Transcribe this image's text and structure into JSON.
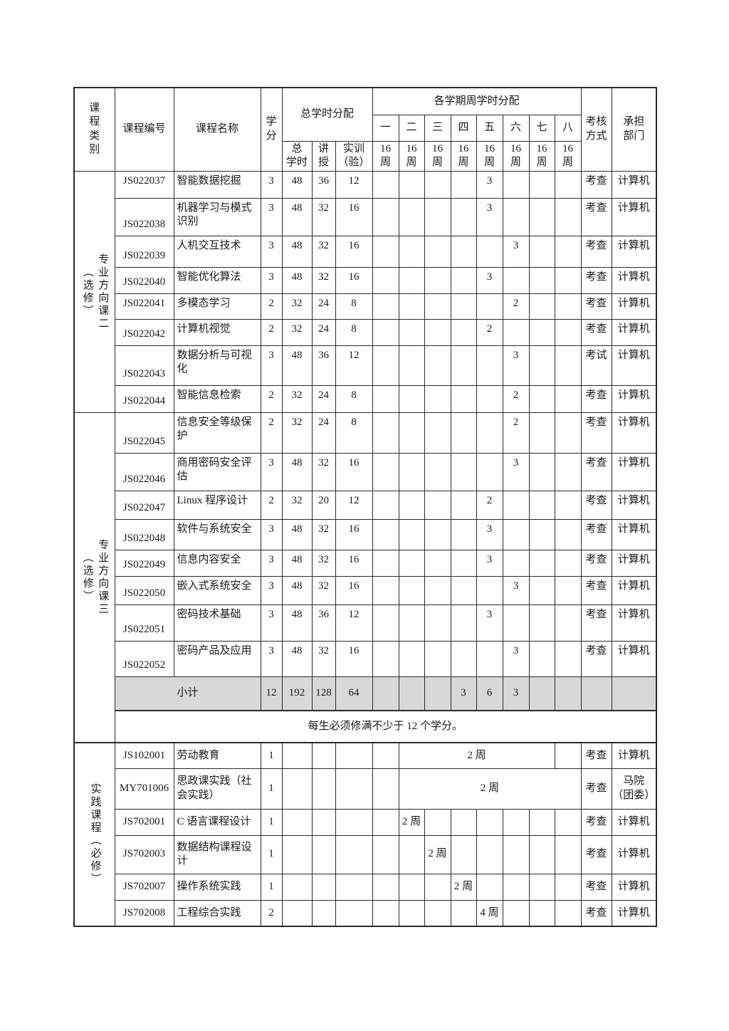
{
  "table": {
    "header": {
      "category": "课\n程\n类\n别",
      "code": "课程编号",
      "name": "课程名称",
      "credits": "学\n分",
      "hours_group": "总学时分配",
      "total": "总\n学时",
      "lecture": "讲授",
      "practice_col": "实训\n（验）",
      "semester_group": "各学期周学时分配",
      "semesters": [
        "一",
        "二",
        "三",
        "四",
        "五",
        "六",
        "七",
        "八"
      ],
      "weeks": "16\n周",
      "assessment": "考核\n方式",
      "department": "承担\n部门"
    },
    "sections": [
      {
        "category_main": "专业方向课二",
        "category_paren": "（选修）",
        "rows": [
          {
            "code": "JS022037",
            "name": "智能数据挖掘",
            "credits": "3",
            "total": "48",
            "lecture": "36",
            "practice": "12",
            "sem": {
              "5": "3"
            },
            "assessment": "考查",
            "department": "计算机"
          },
          {
            "code": "JS022038",
            "name": "机器学习与模式\n识别",
            "credits": "3",
            "total": "48",
            "lecture": "32",
            "practice": "16",
            "sem": {
              "5": "3"
            },
            "assessment": "考查",
            "department": "计算机"
          },
          {
            "code": "JS022039",
            "name": "人机交互技术",
            "credits": "3",
            "total": "48",
            "lecture": "32",
            "practice": "16",
            "sem": {
              "6": "3"
            },
            "assessment": "考查",
            "department": "计算机"
          },
          {
            "code": "JS022040",
            "name": "智能优化算法",
            "credits": "3",
            "total": "48",
            "lecture": "32",
            "practice": "16",
            "sem": {
              "5": "3"
            },
            "assessment": "考查",
            "department": "计算机"
          },
          {
            "code": "JS022041",
            "name": "多模态学习",
            "credits": "2",
            "total": "32",
            "lecture": "24",
            "practice": "8",
            "sem": {
              "6": "2"
            },
            "assessment": "考查",
            "department": "计算机"
          },
          {
            "code": "JS022042",
            "name": "计算机视觉",
            "credits": "2",
            "total": "32",
            "lecture": "24",
            "practice": "8",
            "sem": {
              "5": "2"
            },
            "assessment": "考查",
            "department": "计算机"
          },
          {
            "code": "JS022043",
            "name": "数据分析与可视\n化",
            "credits": "3",
            "total": "48",
            "lecture": "36",
            "practice": "12",
            "sem": {
              "6": "3"
            },
            "assessment": "考试",
            "department": "计算机"
          },
          {
            "code": "JS022044",
            "name": "智能信息检索",
            "credits": "2",
            "total": "32",
            "lecture": "24",
            "practice": "8",
            "sem": {
              "6": "2"
            },
            "assessment": "考查",
            "department": "计算机"
          }
        ]
      },
      {
        "category_main": "专业方向课三",
        "category_paren": "（选修）",
        "rows": [
          {
            "code": "JS022045",
            "name": "信息安全等级保\n护",
            "credits": "2",
            "total": "32",
            "lecture": "24",
            "practice": "8",
            "sem": {
              "6": "2"
            },
            "assessment": "考查",
            "department": "计算机"
          },
          {
            "code": "JS022046",
            "name": "商用密码安全评\n估",
            "credits": "3",
            "total": "48",
            "lecture": "32",
            "practice": "16",
            "sem": {
              "6": "3"
            },
            "assessment": "考查",
            "department": "计算机"
          },
          {
            "code": "JS022047",
            "name": "Linux 程序设计",
            "credits": "2",
            "total": "32",
            "lecture": "20",
            "practice": "12",
            "sem": {
              "5": "2"
            },
            "assessment": "考查",
            "department": "计算机"
          },
          {
            "code": "JS022048",
            "name": "软件与系统安全",
            "credits": "3",
            "total": "48",
            "lecture": "32",
            "practice": "16",
            "sem": {
              "5": "3"
            },
            "assessment": "考查",
            "department": "计算机"
          },
          {
            "code": "JS022049",
            "name": "信息内容安全",
            "credits": "3",
            "total": "48",
            "lecture": "32",
            "practice": "16",
            "sem": {
              "5": "3"
            },
            "assessment": "考查",
            "department": "计算机"
          },
          {
            "code": "JS022050",
            "name": "嵌入式系统安全",
            "credits": "3",
            "total": "48",
            "lecture": "32",
            "practice": "16",
            "sem": {
              "6": "3"
            },
            "assessment": "考查",
            "department": "计算机"
          },
          {
            "code": "JS022051",
            "name": "密码技术基础",
            "credits": "3",
            "total": "48",
            "lecture": "36",
            "practice": "12",
            "sem": {
              "5": "3"
            },
            "assessment": "考查",
            "department": "计算机"
          },
          {
            "code": "JS022052",
            "name": "密码产品及应用",
            "credits": "3",
            "total": "48",
            "lecture": "32",
            "practice": "16",
            "sem": {
              "6": "3"
            },
            "assessment": "考查",
            "department": "计算机"
          }
        ]
      },
      {
        "category_single": "实践课程（必修）",
        "rows": [
          {
            "code": "JS102001",
            "name": "劳动教育",
            "credits": "1",
            "span": {
              "from": 2,
              "to": 7,
              "label": "2 周"
            },
            "assessment": "考查",
            "department": "计算机"
          },
          {
            "code": "MY701006",
            "name": "思政课实践（社\n会实践）",
            "credits": "1",
            "span": {
              "from": 2,
              "to": 8,
              "label": "2 周"
            },
            "assessment": "考查",
            "department": "马院\n（团委）"
          },
          {
            "code": "JS702001",
            "name": "C 语言课程设计",
            "credits": "1",
            "sem": {
              "2": "2 周"
            },
            "assessment": "考查",
            "department": "计算机"
          },
          {
            "code": "JS702003",
            "name": "数据结构课程设\n计",
            "credits": "1",
            "sem": {
              "3": "2 周"
            },
            "assessment": "考查",
            "department": "计算机"
          },
          {
            "code": "JS702007",
            "name": "操作系统实践",
            "credits": "1",
            "sem": {
              "4": "2 周"
            },
            "assessment": "考查",
            "department": "计算机"
          },
          {
            "code": "JS702008",
            "name": "工程综合实践",
            "credits": "2",
            "sem": {
              "5": "4 周"
            },
            "assessment": "考查",
            "department": "计算机"
          }
        ]
      }
    ],
    "subtotal": {
      "label": "小计",
      "credits": "12",
      "total": "192",
      "lecture": "128",
      "practice": "64",
      "semesters": [
        "",
        "",
        "",
        "3",
        "6",
        "3",
        "",
        ""
      ]
    },
    "note": "每生必须修满不少于 12 个学分。"
  }
}
